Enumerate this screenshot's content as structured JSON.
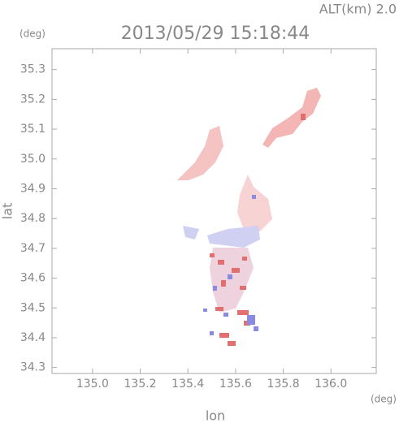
{
  "chart_data": {
    "type": "map",
    "title": "2013/05/29 15:18:44",
    "subtitle": "ALT(km)  2.0",
    "y_unit": "(deg)",
    "x_unit": "(deg)",
    "xlabel": "lon",
    "ylabel": "lat",
    "xlim": [
      134.83,
      136.19
    ],
    "ylim": [
      34.28,
      35.37
    ],
    "xticks": [
      {
        "value": 135.0,
        "label": "135.0"
      },
      135.2,
      135.4,
      135.6,
      135.8,
      {
        "value": 136.0,
        "label": "136.0"
      }
    ],
    "yticks": [
      34.3,
      34.4,
      34.5,
      34.6,
      34.7,
      34.8,
      34.9,
      {
        "value": 35.0,
        "label": "35.0"
      },
      35.1,
      35.2,
      35.3
    ]
  }
}
